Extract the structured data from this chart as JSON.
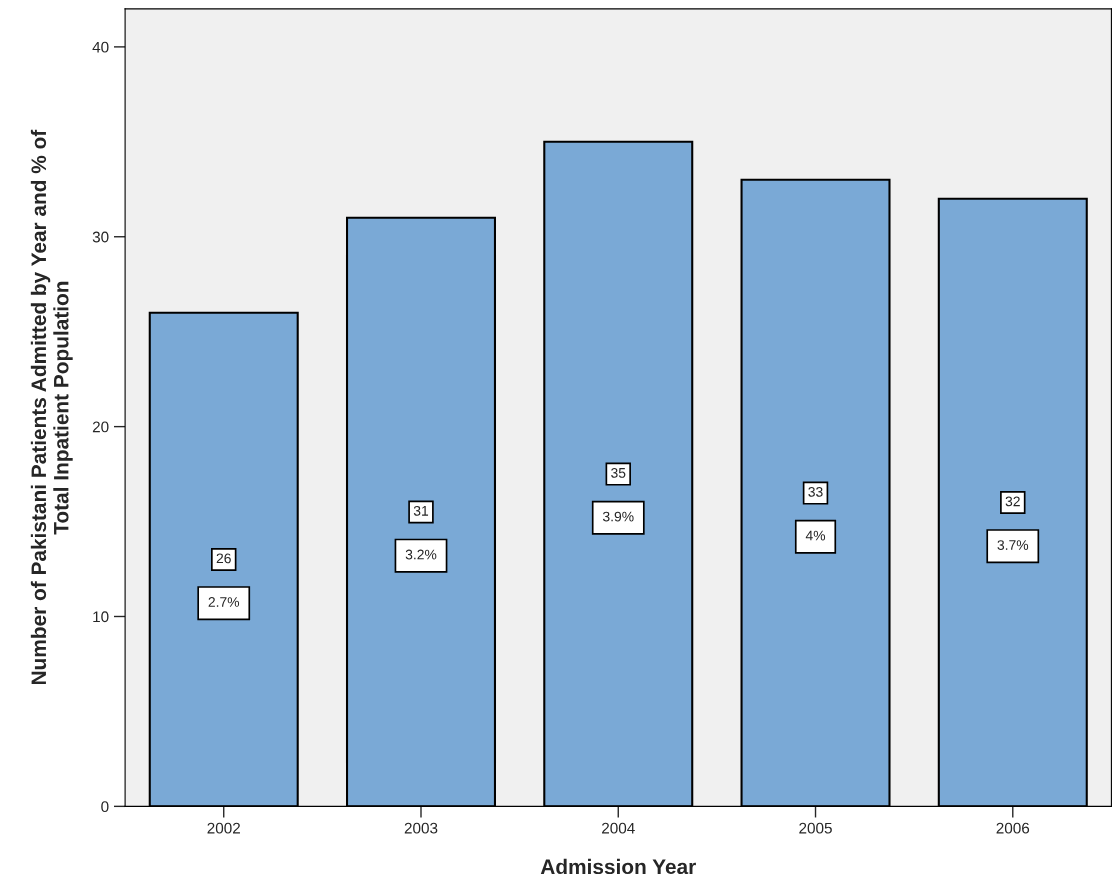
{
  "chart_data": {
    "type": "bar",
    "xlabel": "Admission Year",
    "ylabel": "Number of Pakistani Patients Admitted by Year and % of\nTotal Inpatient Population",
    "categories": [
      "2002",
      "2003",
      "2004",
      "2005",
      "2006"
    ],
    "values": [
      26,
      31,
      35,
      33,
      32
    ],
    "color": "#7aa9d6",
    "ylim": [
      0,
      42
    ],
    "yticks": [
      0,
      10,
      20,
      30,
      40
    ],
    "grid": false,
    "data_labels": true,
    "annotations": [
      "2.7%",
      "3.2%",
      "3.9%",
      "4%",
      "3.7%"
    ]
  }
}
